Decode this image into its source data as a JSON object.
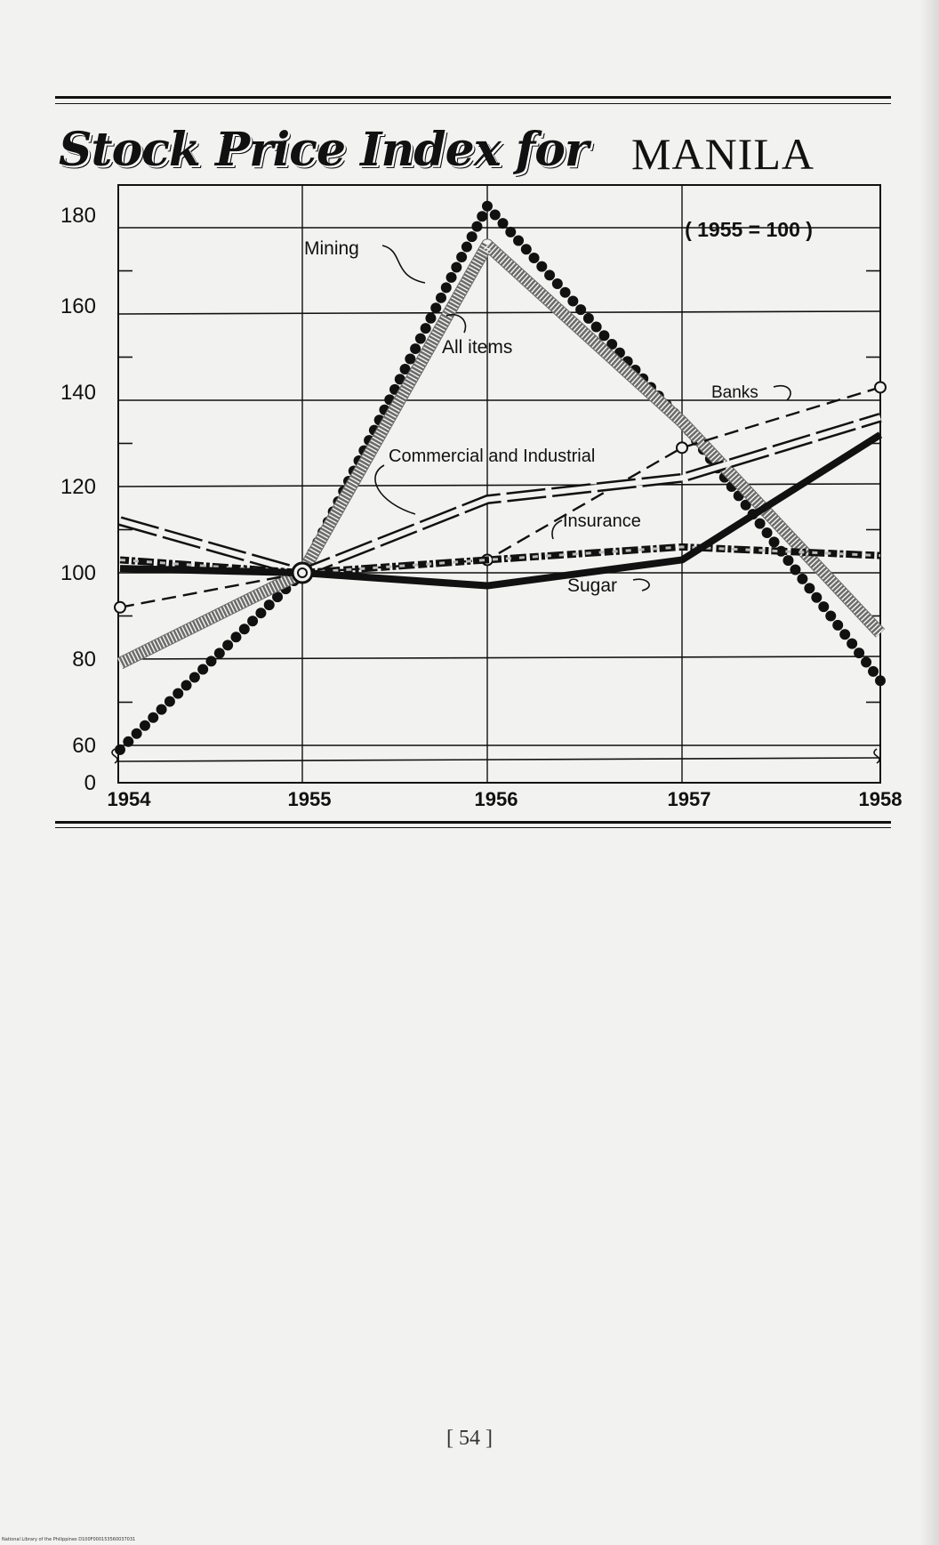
{
  "page": {
    "page_number": "[ 54 ]",
    "footer": "National Library of the Philippines    D100F000153560037031"
  },
  "colors": {
    "ink": "#111111",
    "paper": "#f2f2f0",
    "dotted_gray": "#6b6b6b"
  },
  "chart_data": {
    "type": "line",
    "title_script": "Stock Price Index for",
    "title_city": "MANILA",
    "subtitle": "( 1955 = 100 )",
    "x": [
      "1954",
      "1955",
      "1956",
      "1957",
      "1958"
    ],
    "y_ticks": [
      "0",
      "60",
      "80",
      "100",
      "120",
      "140",
      "160",
      "180"
    ],
    "ylim": [
      0,
      185
    ],
    "grid": true,
    "series": [
      {
        "name": "Mining",
        "values": [
          59,
          100,
          185,
          135,
          75
        ],
        "style": "bold-dots"
      },
      {
        "name": "All items",
        "values": [
          79,
          100,
          176,
          135,
          86
        ],
        "style": "speckled"
      },
      {
        "name": "Banks",
        "values": [
          92,
          100,
          103,
          129,
          143
        ],
        "style": "dashed-open-circles"
      },
      {
        "name": "Commercial and Industrial",
        "values": [
          112,
          100,
          117,
          122,
          136
        ],
        "style": "hollow-dashed"
      },
      {
        "name": "Insurance",
        "values": [
          103,
          100,
          103,
          106,
          104
        ],
        "style": "broken-band"
      },
      {
        "name": "Sugar",
        "values": [
          101,
          100,
          97,
          103,
          132
        ],
        "style": "solid-bold"
      }
    ]
  }
}
